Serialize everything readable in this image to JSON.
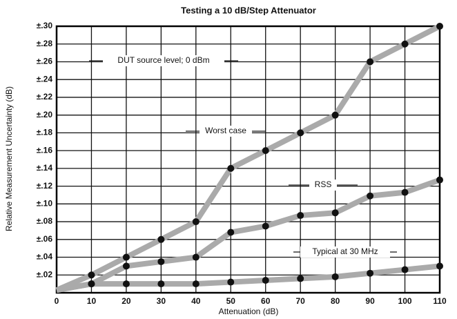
{
  "chart_data": {
    "type": "line",
    "title": "Testing a 10 dB/Step Attenuator",
    "xlabel": "Attenuation (dB)",
    "ylabel": "Relative Measurement Uncertainty (dB)",
    "x": [
      0,
      10,
      20,
      30,
      40,
      50,
      60,
      70,
      80,
      90,
      100,
      110
    ],
    "series": [
      {
        "name": "Worst case",
        "color": "#aaaaaa",
        "values": [
          0.003,
          0.02,
          0.04,
          0.06,
          0.08,
          0.14,
          0.16,
          0.18,
          0.2,
          0.26,
          0.28,
          0.3
        ]
      },
      {
        "name": "RSS",
        "color": "#aaaaaa",
        "values": [
          0.003,
          0.01,
          0.03,
          0.035,
          0.04,
          0.068,
          0.075,
          0.087,
          0.09,
          0.109,
          0.113,
          0.127
        ]
      },
      {
        "name": "Typical at 30 MHz",
        "color": "#aaaaaa",
        "values": [
          0.003,
          0.01,
          0.01,
          0.01,
          0.01,
          0.012,
          0.014,
          0.016,
          0.018,
          0.022,
          0.026,
          0.03
        ]
      }
    ],
    "annotations": [
      "DUT source level; 0 dBm"
    ],
    "xlim": [
      0,
      110
    ],
    "xticks": [
      0,
      10,
      20,
      30,
      40,
      50,
      60,
      70,
      80,
      90,
      100,
      110
    ],
    "ylim": [
      0,
      0.3
    ],
    "yticks": [
      {
        "value": 0.02,
        "label": "±.02"
      },
      {
        "value": 0.04,
        "label": "±.04"
      },
      {
        "value": 0.06,
        "label": "±.06"
      },
      {
        "value": 0.08,
        "label": "±.08"
      },
      {
        "value": 0.1,
        "label": "±.10"
      },
      {
        "value": 0.12,
        "label": "±.12"
      },
      {
        "value": 0.14,
        "label": "±.14"
      },
      {
        "value": 0.16,
        "label": "±.16"
      },
      {
        "value": 0.18,
        "label": "±.18"
      },
      {
        "value": 0.2,
        "label": "±.20"
      },
      {
        "value": 0.22,
        "label": "±.22"
      },
      {
        "value": 0.24,
        "label": "±.24"
      },
      {
        "value": 0.26,
        "label": "±.26"
      },
      {
        "value": 0.28,
        "label": "±.28"
      },
      {
        "value": 0.3,
        "label": "±.30"
      }
    ],
    "grid": true
  }
}
